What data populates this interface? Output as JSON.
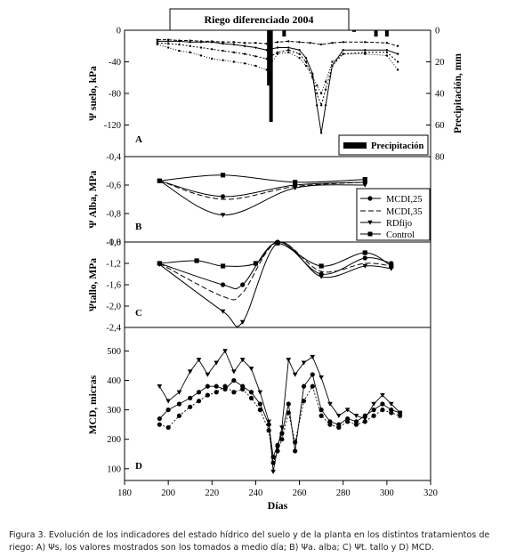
{
  "chart_data": [
    {
      "panel": "A",
      "type": "line",
      "title": "Riego diferenciado 2004",
      "ylabel": "Ψ suelo, kPa",
      "ylabel_right": "Precipitación, mm",
      "ylim": [
        -160,
        0
      ],
      "yticks": [
        "0",
        "-40",
        "-80",
        "-120"
      ],
      "ylim_right": [
        80,
        0
      ],
      "yticks_right": [
        "0",
        "20",
        "40",
        "60",
        "80"
      ],
      "legend": [
        "Precipitación"
      ],
      "series": [
        {
          "x": [
            195,
            200,
            205,
            210,
            215,
            220,
            225,
            230,
            235,
            240,
            245,
            250,
            255,
            260,
            263,
            266,
            268,
            270,
            272,
            275,
            280,
            290,
            300,
            305
          ],
          "y": [
            -14,
            -14,
            -14,
            -15,
            -15,
            -15,
            -17,
            -18,
            -20,
            -22,
            -25,
            -22,
            -22,
            -25,
            -35,
            -55,
            -95,
            -130,
            -95,
            -45,
            -25,
            -25,
            -25,
            -30
          ]
        },
        {
          "x": [
            195,
            200,
            205,
            210,
            215,
            220,
            225,
            230,
            235,
            240,
            245,
            250,
            255,
            260,
            263,
            266,
            268,
            270,
            272,
            275,
            280,
            290,
            300,
            305
          ],
          "y": [
            -16,
            -17,
            -18,
            -20,
            -22,
            -24,
            -26,
            -28,
            -30,
            -33,
            -36,
            -28,
            -25,
            -30,
            -40,
            -60,
            -80,
            -95,
            -75,
            -45,
            -30,
            -28,
            -28,
            -40
          ]
        },
        {
          "x": [
            195,
            200,
            205,
            210,
            215,
            220,
            225,
            230,
            235,
            240,
            245,
            250,
            255,
            260,
            263,
            266,
            268,
            270,
            272,
            275,
            280,
            290,
            300,
            305
          ],
          "y": [
            -18,
            -22,
            -26,
            -28,
            -32,
            -36,
            -38,
            -40,
            -42,
            -45,
            -50,
            -30,
            -28,
            -35,
            -45,
            -58,
            -70,
            -80,
            -65,
            -40,
            -30,
            -30,
            -32,
            -50
          ]
        },
        {
          "x": [
            195,
            200,
            205,
            210,
            215,
            220,
            225,
            230,
            235,
            240,
            245,
            250,
            255,
            260,
            265,
            270,
            275,
            280,
            290,
            300,
            305
          ],
          "y": [
            -12,
            -12,
            -13,
            -13,
            -14,
            -14,
            -15,
            -15,
            -16,
            -16,
            -17,
            -15,
            -14,
            -15,
            -16,
            -18,
            -16,
            -15,
            -15,
            -16,
            -20
          ]
        }
      ],
      "bars": {
        "x": [
          246,
          247,
          253,
          285,
          295,
          300
        ],
        "values": [
          35,
          58,
          4,
          1,
          4,
          4
        ]
      }
    },
    {
      "panel": "B",
      "type": "line",
      "ylabel": "Ψ Alba, MPa",
      "ylim": [
        -1.0,
        -0.4
      ],
      "yticks": [
        "-0,4",
        "-0,6",
        "-0,8",
        "-1,0"
      ],
      "legend": [
        "MCDI,25",
        "MCDI,35",
        "RDfijo",
        "Control"
      ],
      "series": [
        {
          "name": "MCDI,25",
          "x": [
            196,
            225,
            258,
            290
          ],
          "y": [
            -0.57,
            -0.68,
            -0.6,
            -0.58
          ]
        },
        {
          "name": "MCDI,35",
          "x": [
            196,
            225,
            258,
            290
          ],
          "y": [
            -0.57,
            -0.7,
            -0.61,
            -0.58
          ]
        },
        {
          "name": "RDfijo",
          "x": [
            196,
            225,
            258,
            290
          ],
          "y": [
            -0.57,
            -0.81,
            -0.62,
            -0.6
          ]
        },
        {
          "name": "Control",
          "x": [
            196,
            225,
            258,
            290
          ],
          "y": [
            -0.57,
            -0.53,
            -0.58,
            -0.56
          ]
        }
      ]
    },
    {
      "panel": "C",
      "type": "line",
      "ylabel": "Ψtallo, MPa",
      "ylim": [
        -2.4,
        -0.8
      ],
      "yticks": [
        "-0,8",
        "-1,2",
        "-1,6",
        "-2,0",
        "-2,4"
      ],
      "series": [
        {
          "name": "MCDI,25",
          "x": [
            196,
            225,
            234,
            250,
            270,
            290,
            302
          ],
          "y": [
            -1.2,
            -1.6,
            -1.6,
            -0.8,
            -1.4,
            -1.1,
            -1.2
          ]
        },
        {
          "name": "MCDI,35",
          "x": [
            196,
            225,
            234,
            250,
            270,
            290,
            302
          ],
          "y": [
            -1.2,
            -1.82,
            -1.75,
            -0.8,
            -1.35,
            -1.2,
            -1.25
          ]
        },
        {
          "name": "RDfijo",
          "x": [
            196,
            225,
            234,
            250,
            270,
            290,
            302
          ],
          "y": [
            -1.22,
            -2.1,
            -2.3,
            -0.82,
            -1.45,
            -1.25,
            -1.3
          ]
        },
        {
          "name": "Control",
          "x": [
            196,
            213,
            225,
            240,
            250,
            270,
            290,
            302
          ],
          "y": [
            -1.2,
            -1.15,
            -1.25,
            -1.2,
            -0.82,
            -1.25,
            -1.0,
            -1.25
          ]
        }
      ]
    },
    {
      "panel": "D",
      "type": "line",
      "ylabel": "MCD, micras",
      "xlabel": "Días",
      "xlim": [
        180,
        320
      ],
      "xticks": [
        "180",
        "200",
        "220",
        "240",
        "260",
        "280",
        "300",
        "320"
      ],
      "ylim": [
        60,
        580
      ],
      "yticks": [
        "100",
        "200",
        "300",
        "400",
        "500"
      ],
      "series": [
        {
          "x": [
            196,
            200,
            205,
            210,
            214,
            218,
            222,
            226,
            230,
            234,
            238,
            242,
            246,
            248,
            250,
            252,
            255,
            258,
            262,
            266,
            270,
            274,
            278,
            282,
            286,
            290,
            294,
            298,
            302,
            306
          ],
          "y": [
            270,
            300,
            320,
            340,
            360,
            380,
            380,
            370,
            400,
            380,
            360,
            320,
            250,
            140,
            180,
            220,
            320,
            160,
            380,
            420,
            300,
            260,
            250,
            270,
            260,
            280,
            300,
            320,
            300,
            290
          ]
        },
        {
          "x": [
            196,
            200,
            205,
            210,
            214,
            218,
            222,
            226,
            230,
            234,
            238,
            242,
            246,
            248,
            250,
            252,
            255,
            258,
            262,
            266,
            270,
            274,
            278,
            282,
            286,
            290,
            294,
            298,
            302,
            306
          ],
          "y": [
            380,
            330,
            360,
            430,
            470,
            420,
            460,
            500,
            430,
            470,
            440,
            360,
            260,
            90,
            170,
            240,
            470,
            420,
            460,
            480,
            410,
            320,
            280,
            300,
            280,
            270,
            320,
            350,
            320,
            290
          ]
        },
        {
          "x": [
            196,
            200,
            205,
            210,
            214,
            218,
            222,
            226,
            230,
            234,
            238,
            242,
            246,
            248,
            250,
            252,
            255,
            258,
            262,
            266,
            270,
            274,
            278,
            282,
            286,
            290,
            294,
            298,
            302,
            306
          ],
          "y": [
            250,
            240,
            280,
            310,
            330,
            350,
            360,
            380,
            360,
            370,
            340,
            300,
            230,
            120,
            160,
            200,
            290,
            190,
            330,
            380,
            280,
            250,
            240,
            260,
            250,
            260,
            280,
            300,
            290,
            280
          ]
        }
      ]
    }
  ],
  "caption": "Figura 3. Evolución de los indicadores del estado hídrico del suelo y de la planta en los distintos tratamientos de riego: A) Ψs, los valores mostrados son los tomados a medio día; B) Ψa. alba; C) Ψt. tallo y D) MCD."
}
